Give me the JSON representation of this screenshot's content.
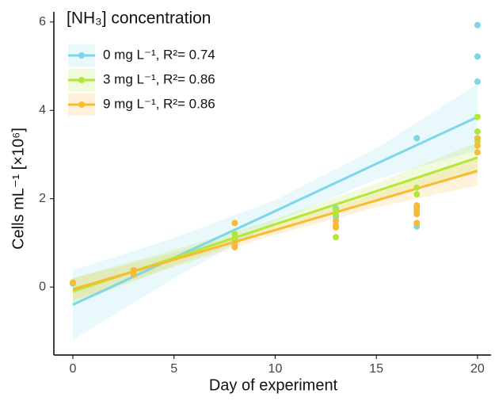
{
  "chart_data": {
    "type": "scatter",
    "legend_title": "[NH₃] concentration",
    "x_label": "Day of experiment",
    "y_label": "Cells mL⁻¹ [×10⁶]",
    "xlim": [
      -0.94,
      20.67
    ],
    "ylim": [
      -1.54,
      6.23
    ],
    "xticks": [
      0,
      5,
      10,
      15,
      20
    ],
    "yticks": [
      0,
      2,
      4,
      6
    ],
    "legend": "upper left",
    "series": [
      {
        "name": "0 mg L⁻¹,  R²= 0.74",
        "color": "#7dd6ea",
        "x": [
          0,
          0,
          3,
          3,
          8,
          8,
          8,
          13,
          13,
          13,
          17,
          17,
          17,
          20,
          20,
          20
        ],
        "values": [
          0.1,
          0.08,
          0.3,
          0.35,
          1.0,
          1.1,
          0.95,
          1.78,
          1.6,
          1.5,
          3.37,
          1.37,
          1.8,
          5.93,
          5.22,
          4.65
        ],
        "fit": {
          "x": [
            0,
            5,
            10,
            15,
            20
          ],
          "values": [
            -0.4,
            0.66,
            1.72,
            2.79,
            3.85
          ],
          "lower": [
            -1.2,
            0.2,
            1.47,
            2.44,
            3.1
          ],
          "upper": [
            0.38,
            1.11,
            1.97,
            3.14,
            4.6
          ]
        }
      },
      {
        "name": "3 mg L⁻¹,  R²= 0.86",
        "color": "#b4e63a",
        "x": [
          0,
          3,
          3,
          8,
          8,
          8,
          13,
          13,
          13,
          17,
          17,
          17,
          20,
          20,
          20
        ],
        "values": [
          0.1,
          0.3,
          0.35,
          1.2,
          1.1,
          1.05,
          1.13,
          1.65,
          1.75,
          2.25,
          2.1,
          1.7,
          3.85,
          3.52,
          3.3
        ],
        "fit": {
          "x": [
            0,
            5,
            10,
            15,
            20
          ],
          "values": [
            -0.1,
            0.66,
            1.42,
            2.17,
            2.93
          ],
          "lower": [
            -0.4,
            0.48,
            1.3,
            1.99,
            2.58
          ],
          "upper": [
            0.2,
            0.84,
            1.54,
            2.35,
            3.28
          ]
        }
      },
      {
        "name": "9 mg L⁻¹,  R²= 0.86",
        "color": "#f8bb33",
        "x": [
          0,
          3,
          3,
          8,
          8,
          8,
          13,
          13,
          13,
          17,
          17,
          17,
          17,
          20,
          20,
          20
        ],
        "values": [
          0.1,
          0.28,
          0.38,
          1.45,
          0.9,
          1.0,
          1.4,
          1.5,
          1.35,
          1.85,
          1.75,
          1.65,
          1.45,
          3.37,
          3.2,
          3.05
        ],
        "fit": {
          "x": [
            0,
            5,
            10,
            15,
            20
          ],
          "values": [
            -0.05,
            0.62,
            1.29,
            1.96,
            2.63
          ],
          "lower": [
            -0.3,
            0.46,
            1.18,
            1.8,
            2.3
          ],
          "upper": [
            0.2,
            0.78,
            1.4,
            2.12,
            2.96
          ]
        }
      }
    ]
  }
}
